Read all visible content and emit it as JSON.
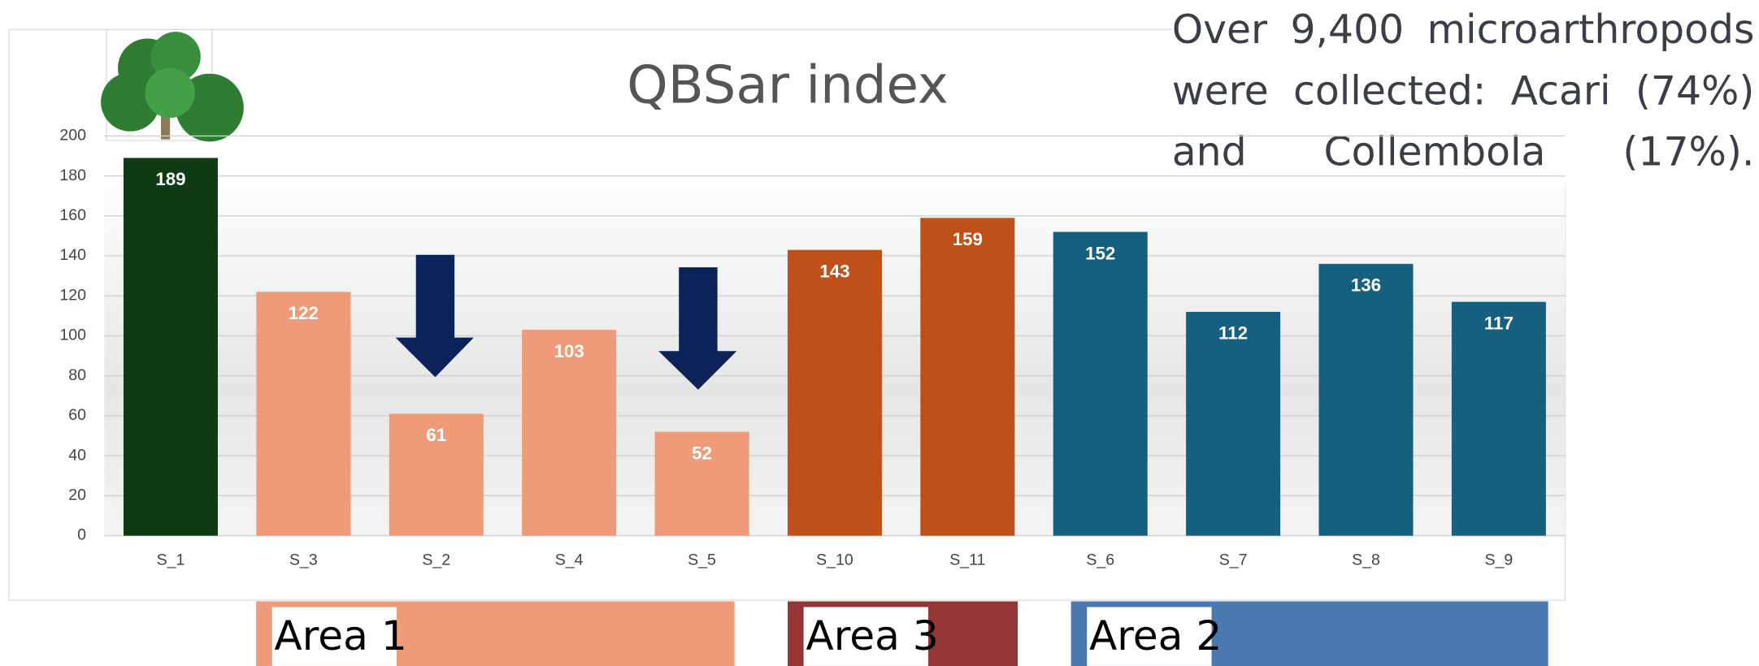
{
  "chart_data": {
    "type": "bar",
    "title": "QBSar index",
    "categories": [
      "S_1",
      "S_3",
      "S_2",
      "S_4",
      "S_5",
      "S_10",
      "S_11",
      "S_6",
      "S_7",
      "S_8",
      "S_9"
    ],
    "values": [
      189,
      122,
      61,
      103,
      52,
      143,
      159,
      152,
      112,
      136,
      117
    ],
    "colors": [
      "#103a14",
      "#ef9a78",
      "#ef9a78",
      "#ef9a78",
      "#ef9a78",
      "#c0501a",
      "#c0501a",
      "#16607f",
      "#16607f",
      "#16607f",
      "#16607f"
    ],
    "ylim": [
      0,
      200
    ],
    "yticks": [
      0,
      20,
      40,
      60,
      80,
      100,
      120,
      140,
      160,
      180,
      200
    ],
    "grid": true,
    "note": "Over 9,400 microarthropods were collected:  Acari (74%) and Collembola (17%).",
    "areas": [
      {
        "label": "Area 1",
        "color": "#ef9a78"
      },
      {
        "label": "Area 3",
        "color": "#953535"
      },
      {
        "label": "Area 2",
        "color": "#4a78b0"
      }
    ]
  }
}
